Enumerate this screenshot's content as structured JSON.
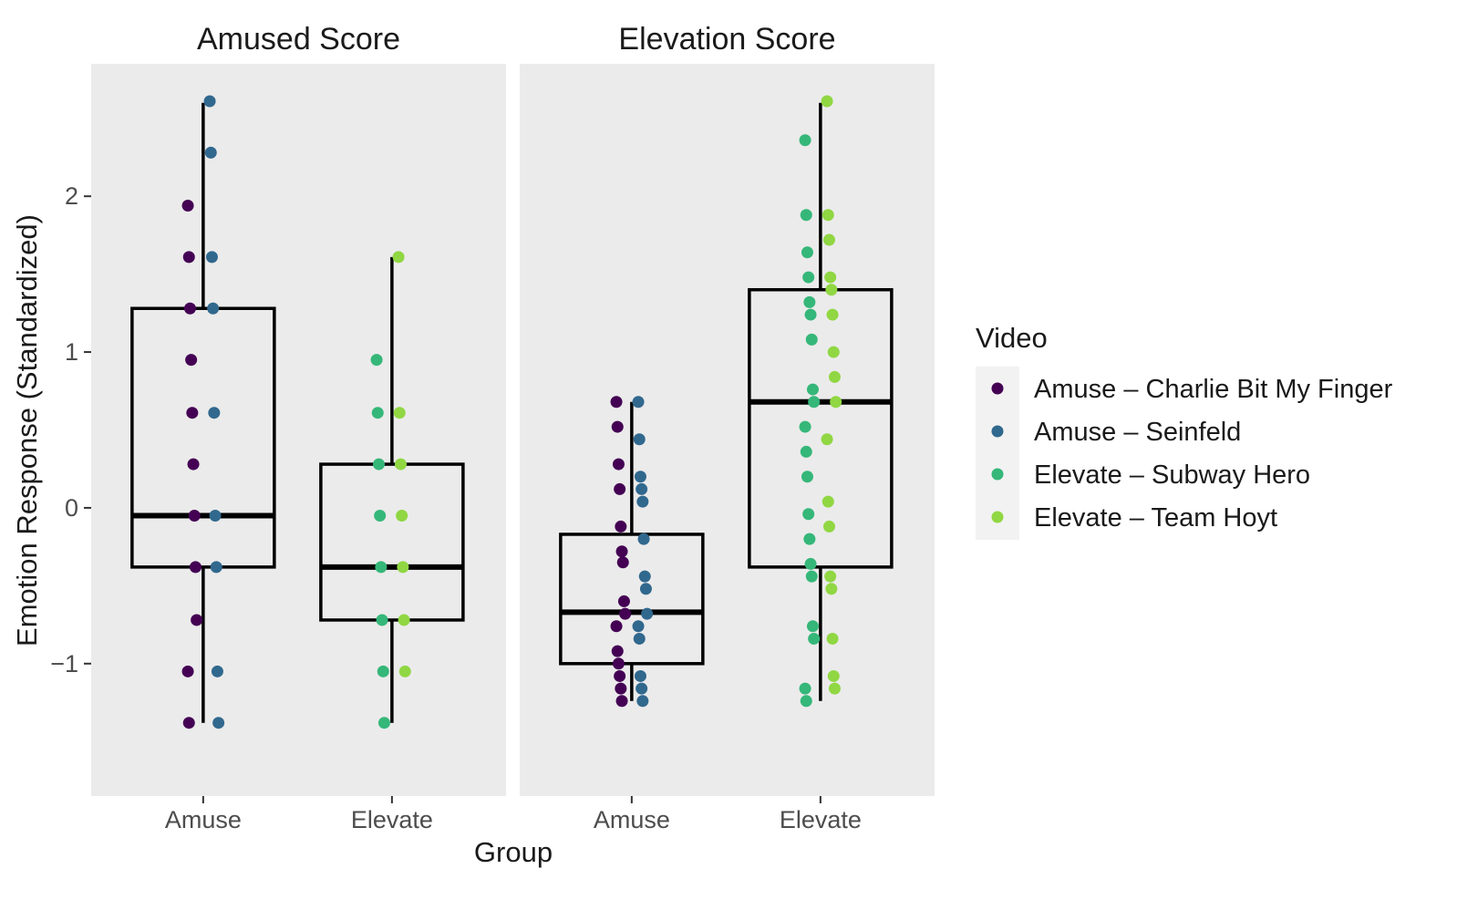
{
  "chart_data": {
    "type": "box",
    "xlabel": "Group",
    "ylabel": "Emotion Response (Standardized)",
    "ylim": [
      -1.85,
      2.85
    ],
    "y_ticks": [
      {
        "value": -1,
        "label": "−1"
      },
      {
        "value": 0,
        "label": "0"
      },
      {
        "value": 1,
        "label": "1"
      },
      {
        "value": 2,
        "label": "2"
      }
    ],
    "categories": [
      "Amuse",
      "Elevate"
    ],
    "legend": {
      "title": "Video",
      "position": "right",
      "entries": [
        {
          "name": "Amuse – Charlie Bit My Finger",
          "color": "#440154"
        },
        {
          "name": "Amuse – Seinfeld",
          "color": "#31688e"
        },
        {
          "name": "Elevate – Subway Hero",
          "color": "#35b779"
        },
        {
          "name": "Elevate – Team Hoyt",
          "color": "#90d743"
        }
      ]
    },
    "panel_background": "#ebebeb",
    "facets": [
      {
        "title": "Amused Score",
        "boxes": [
          {
            "group": "Amuse",
            "whisker_low": -1.38,
            "q1": -0.38,
            "median": -0.05,
            "q3": 1.28,
            "whisker_high": 2.6,
            "points": [
              {
                "video": 0,
                "y": [
                  1.94,
                  1.61,
                  1.28,
                  0.95,
                  0.61,
                  0.28,
                  -0.05,
                  -0.38,
                  -0.72,
                  -1.05,
                  -1.38
                ]
              },
              {
                "video": 1,
                "y": [
                  2.61,
                  2.28,
                  1.61,
                  1.28,
                  0.61,
                  -0.05,
                  -0.38,
                  -1.05,
                  -1.38
                ]
              }
            ]
          },
          {
            "group": "Elevate",
            "whisker_low": -1.38,
            "q1": -0.72,
            "median": -0.38,
            "q3": 0.28,
            "whisker_high": 1.61,
            "points": [
              {
                "video": 2,
                "y": [
                  0.95,
                  0.61,
                  0.28,
                  -0.05,
                  -0.38,
                  -0.72,
                  -1.05,
                  -1.38
                ]
              },
              {
                "video": 3,
                "y": [
                  1.61,
                  0.61,
                  0.28,
                  -0.05,
                  -0.38,
                  -0.72,
                  -1.05
                ]
              }
            ]
          }
        ]
      },
      {
        "title": "Elevation Score",
        "boxes": [
          {
            "group": "Amuse",
            "whisker_low": -1.24,
            "q1": -1.0,
            "median": -0.67,
            "q3": -0.17,
            "whisker_high": 0.68,
            "points": [
              {
                "video": 0,
                "y": [
                  0.68,
                  0.52,
                  0.28,
                  0.12,
                  -0.12,
                  -0.28,
                  -0.35,
                  -0.6,
                  -0.68,
                  -0.76,
                  -0.92,
                  -1.0,
                  -1.08,
                  -1.16,
                  -1.24
                ]
              },
              {
                "video": 1,
                "y": [
                  0.68,
                  0.44,
                  0.2,
                  0.12,
                  0.04,
                  -0.2,
                  -0.44,
                  -0.52,
                  -0.68,
                  -0.76,
                  -0.84,
                  -1.08,
                  -1.16,
                  -1.24
                ]
              }
            ]
          },
          {
            "group": "Elevate",
            "whisker_low": -1.24,
            "q1": -0.38,
            "median": 0.68,
            "q3": 1.4,
            "whisker_high": 2.6,
            "points": [
              {
                "video": 2,
                "y": [
                  2.36,
                  1.88,
                  1.64,
                  1.48,
                  1.32,
                  1.24,
                  1.08,
                  0.76,
                  0.68,
                  0.52,
                  0.36,
                  0.2,
                  -0.04,
                  -0.2,
                  -0.36,
                  -0.44,
                  -0.76,
                  -0.84,
                  -1.16,
                  -1.24
                ]
              },
              {
                "video": 3,
                "y": [
                  2.61,
                  1.88,
                  1.72,
                  1.48,
                  1.4,
                  1.24,
                  1.0,
                  0.84,
                  0.68,
                  0.44,
                  0.04,
                  -0.12,
                  -0.44,
                  -0.52,
                  -0.84,
                  -1.08,
                  -1.16
                ]
              }
            ]
          }
        ]
      }
    ]
  }
}
